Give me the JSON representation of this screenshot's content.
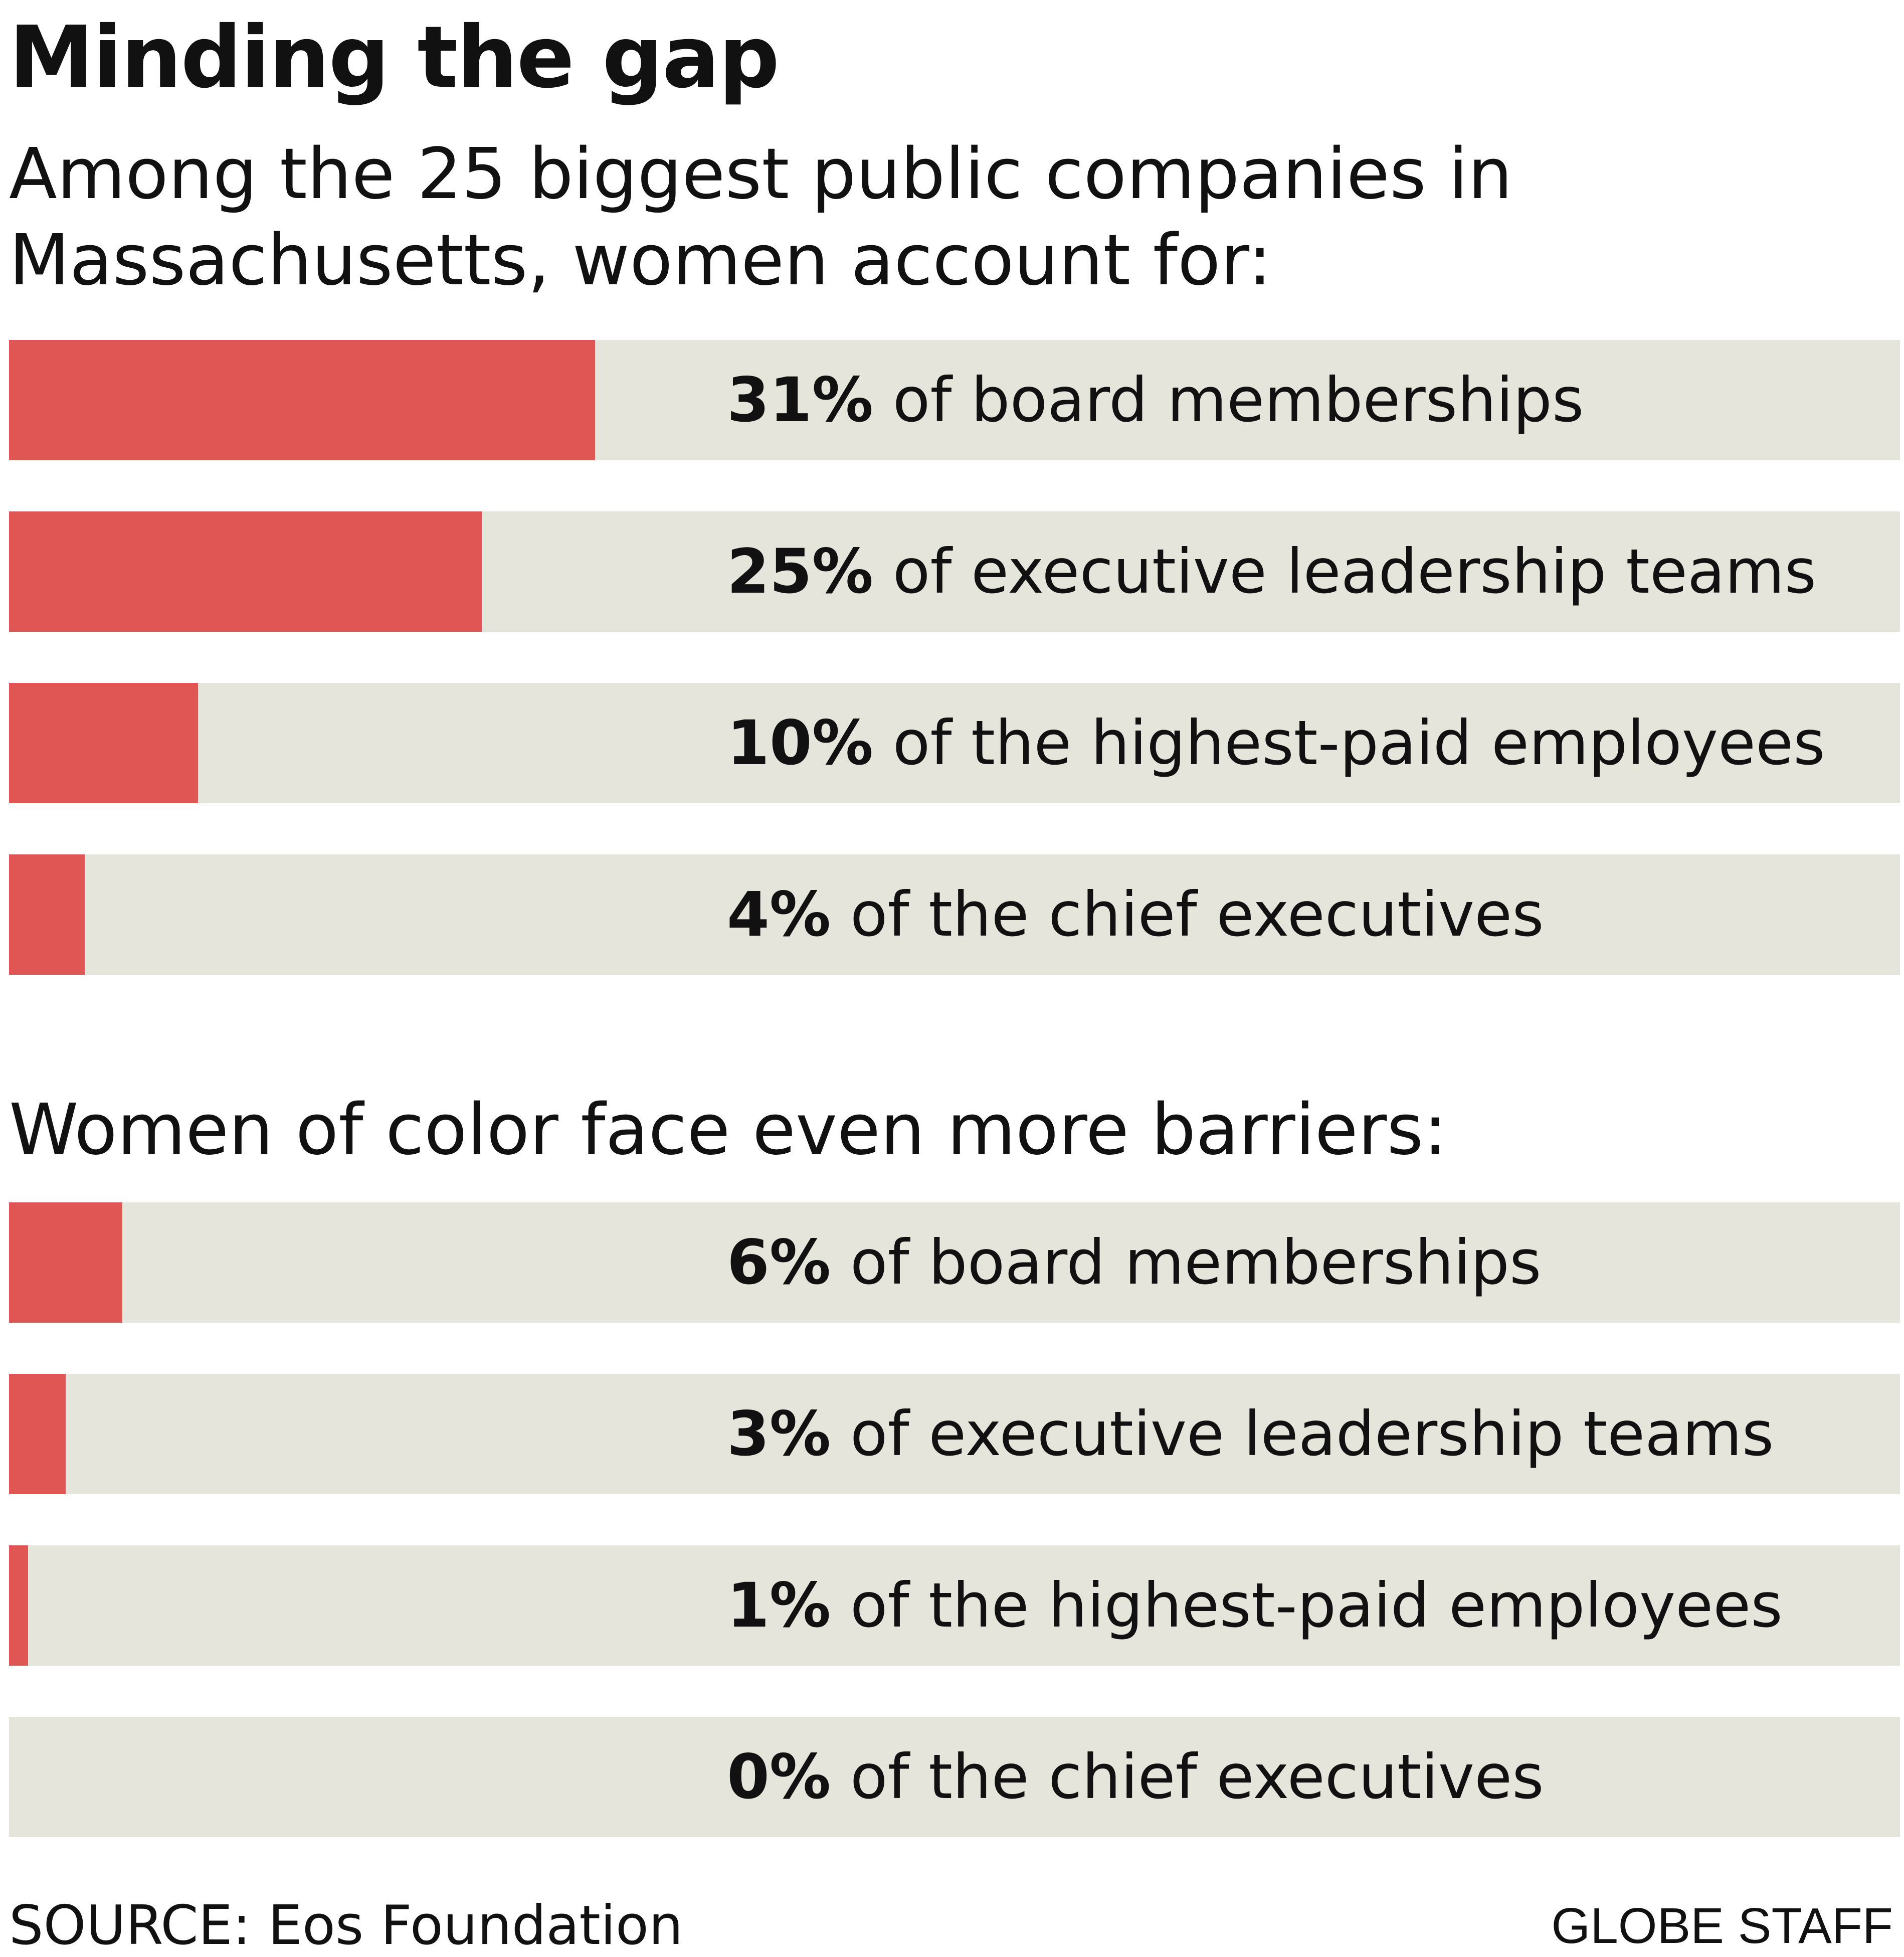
{
  "chart_data": [
    {
      "type": "bar",
      "orientation": "horizontal",
      "title": "Minding the gap",
      "subtitle": "Among the 25 biggest public companies in Massachusetts, women account for:",
      "subtitle_lines": [
        "Among the 25 biggest public companies in",
        "Massachusetts, women account for:"
      ],
      "categories": [
        "board memberships",
        "executive leadership teams",
        "the highest-paid employees",
        "the chief executives"
      ],
      "values": [
        31,
        25,
        10,
        4
      ],
      "unit": "%",
      "xlim": [
        0,
        100
      ],
      "items": [
        {
          "value": 31,
          "pct_text": "31%",
          "rest_text": " of board memberships"
        },
        {
          "value": 25,
          "pct_text": "25%",
          "rest_text": " of executive leadership teams"
        },
        {
          "value": 10,
          "pct_text": "10%",
          "rest_text": " of the highest-paid employees"
        },
        {
          "value": 4,
          "pct_text": "4%",
          "rest_text": " of the chief executives"
        }
      ]
    },
    {
      "type": "bar",
      "orientation": "horizontal",
      "subtitle": "Women of color face even more barriers:",
      "categories": [
        "board memberships",
        "executive leadership teams",
        "the highest-paid employees",
        "the chief executives"
      ],
      "values": [
        6,
        3,
        1,
        0
      ],
      "unit": "%",
      "xlim": [
        0,
        100
      ],
      "items": [
        {
          "value": 6,
          "pct_text": "6%",
          "rest_text": " of board memberships"
        },
        {
          "value": 3,
          "pct_text": "3%",
          "rest_text": " of executive leadership teams"
        },
        {
          "value": 1,
          "pct_text": "1%",
          "rest_text": " of the highest-paid employees"
        },
        {
          "value": 0,
          "pct_text": "0%",
          "rest_text": " of the chief executives"
        }
      ]
    }
  ],
  "colors": {
    "bar_fill": "#e05654",
    "bar_track": "#e6e5dc",
    "text": "#111111"
  },
  "footer": {
    "source": "SOURCE: Eos Foundation",
    "credit": "GLOBE STAFF"
  }
}
